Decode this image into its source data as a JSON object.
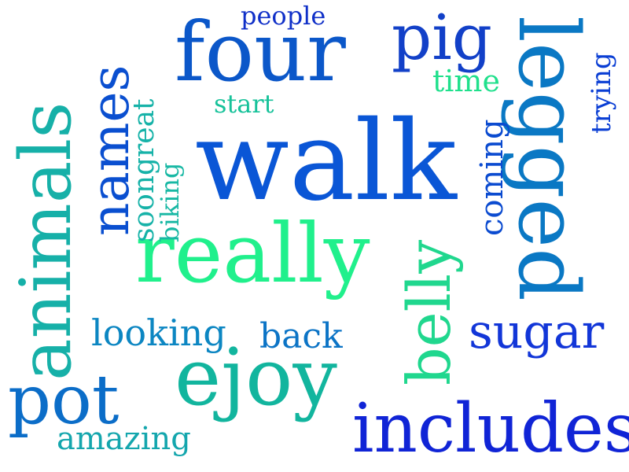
{
  "words": [
    {
      "key": "walk",
      "text": "walk",
      "color": "#0a56d6"
    },
    {
      "key": "four",
      "text": "four",
      "color": "#0b57c9"
    },
    {
      "key": "really",
      "text": "really",
      "color": "#20f08c"
    },
    {
      "key": "animals",
      "text": "animals",
      "color": "#16b0a8"
    },
    {
      "key": "names",
      "text": "names",
      "color": "#0a4fd0"
    },
    {
      "key": "legged",
      "text": "legged",
      "color": "#0a78c4"
    },
    {
      "key": "includes",
      "text": "includes",
      "color": "#1024d6"
    },
    {
      "key": "ejoy",
      "text": "ejoy",
      "color": "#12b59e"
    },
    {
      "key": "pot",
      "text": "pot",
      "color": "#0b6dc8"
    },
    {
      "key": "sugar",
      "text": "sugar",
      "color": "#1236d8"
    },
    {
      "key": "belly",
      "text": "belly",
      "color": "#20d78e"
    },
    {
      "key": "pig",
      "text": "pig",
      "color": "#1240c8"
    },
    {
      "key": "looking",
      "text": "looking",
      "color": "#0c86c2"
    },
    {
      "key": "back",
      "text": "back",
      "color": "#0c74c6"
    },
    {
      "key": "amazing",
      "text": "amazing",
      "color": "#14a6ad"
    },
    {
      "key": "coming",
      "text": "coming",
      "color": "#0b4bd0"
    },
    {
      "key": "time",
      "text": "time",
      "color": "#20e08c"
    },
    {
      "key": "start",
      "text": "start",
      "color": "#17c29a"
    },
    {
      "key": "people",
      "text": "people",
      "color": "#1030c8"
    },
    {
      "key": "trying",
      "text": "trying",
      "color": "#0a3ed4"
    },
    {
      "key": "soongreat",
      "text": "soongreat",
      "color": "#16b2a8"
    },
    {
      "key": "biking",
      "text": "biking",
      "color": "#18b8a4"
    }
  ]
}
